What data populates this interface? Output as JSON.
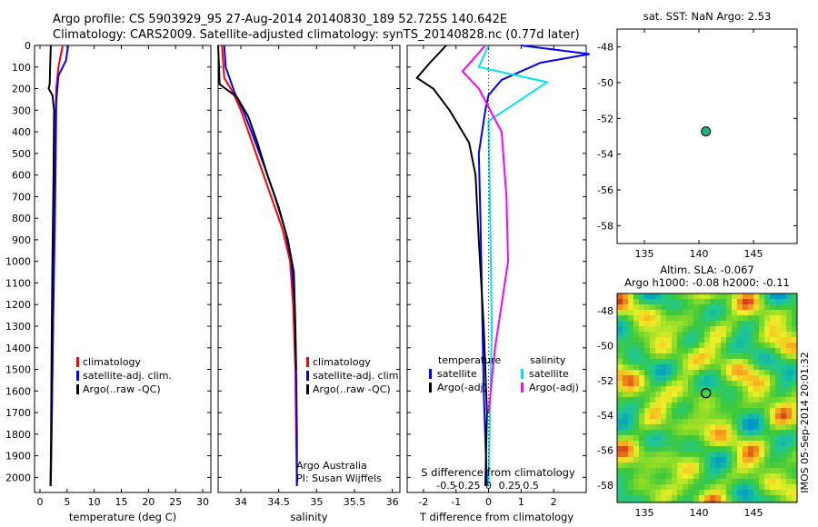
{
  "title_line1": "Argo profile: CS 5903929_95 27-Aug-2014 20140830_189 52.725S 140.642E",
  "title_line2": "Climatology: CARS2009. Satellite-adjusted climatology: synTS_20140828.nc (0.77d later)",
  "colors": {
    "climatology": "#ff0000",
    "satellite": "#0000ff",
    "argo": "#000000",
    "sal_satellite": "#00e5e5",
    "sal_argo": "#ff00ff"
  },
  "depth_ticks": [
    "0",
    "100",
    "200",
    "300",
    "400",
    "500",
    "600",
    "700",
    "800",
    "900",
    "1000",
    "1100",
    "1200",
    "1300",
    "1400",
    "1500",
    "1600",
    "1700",
    "1800",
    "1900",
    "2000"
  ],
  "chart_data": [
    {
      "type": "line",
      "name": "temperature",
      "xlabel": "temperature (deg C)",
      "xlim": [
        -1,
        31.5
      ],
      "ylim": [
        2070,
        0
      ],
      "x_ticks": [
        "0",
        "5",
        "10",
        "15",
        "20",
        "25",
        "30"
      ],
      "legend": [
        "climatology",
        "satellite-adj. clim.",
        "Argo(..raw -QC)"
      ],
      "series": [
        {
          "name": "climatology",
          "color": "#ff0000",
          "x": [
            4.2,
            3.4,
            3.0,
            2.9,
            2.8,
            2.65,
            2.5,
            2.35,
            2.2,
            2.1,
            2.0
          ],
          "y": [
            0,
            100,
            200,
            300,
            500,
            800,
            1100,
            1400,
            1700,
            1900,
            2040
          ]
        },
        {
          "name": "satellite-adj. clim.",
          "color": "#0000ff",
          "x": [
            5.2,
            4.8,
            3.4,
            3.0,
            2.9,
            2.75,
            2.55,
            2.35,
            2.2,
            2.05,
            1.95
          ],
          "y": [
            0,
            70,
            140,
            260,
            500,
            800,
            1100,
            1400,
            1700,
            1900,
            2040
          ]
        },
        {
          "name": "Argo(..raw -QC)",
          "color": "#000000",
          "x": [
            2.0,
            1.9,
            1.8,
            1.6,
            2.3,
            2.6,
            2.5,
            2.3,
            2.15,
            2.05,
            1.95
          ],
          "y": [
            0,
            80,
            180,
            200,
            230,
            300,
            600,
            1000,
            1400,
            1800,
            2040
          ]
        }
      ]
    },
    {
      "type": "line",
      "name": "salinity",
      "xlabel": "salinity",
      "xlim": [
        33.7,
        36.1
      ],
      "ylim": [
        2070,
        0
      ],
      "x_ticks": [
        "34",
        "34.5",
        "35",
        "35.5",
        "36"
      ],
      "legend": [
        "climatology",
        "satellite-adj. clim.",
        "Argo(..raw -QC)"
      ],
      "annotation": [
        "Argo Australia",
        "PI: Susan Wijffels"
      ],
      "series": [
        {
          "name": "climatology",
          "color": "#ff0000",
          "x": [
            33.75,
            33.78,
            33.9,
            34.0,
            34.1,
            34.25,
            34.4,
            34.55,
            34.65,
            34.69,
            34.72,
            34.73,
            34.74
          ],
          "y": [
            0,
            150,
            220,
            300,
            400,
            550,
            700,
            850,
            1000,
            1200,
            1500,
            1800,
            2040
          ]
        },
        {
          "name": "satellite-adj. clim.",
          "color": "#0000ff",
          "x": [
            33.78,
            33.8,
            33.92,
            34.03,
            34.14,
            34.3,
            34.45,
            34.58,
            34.67,
            34.71,
            34.73,
            34.74,
            34.74
          ],
          "y": [
            0,
            100,
            220,
            300,
            400,
            550,
            700,
            850,
            1000,
            1200,
            1500,
            1800,
            2040
          ]
        },
        {
          "name": "Argo(..raw -QC)",
          "color": "#000000",
          "x": [
            33.7,
            33.72,
            33.95,
            34.1,
            34.22,
            34.35,
            34.5,
            34.62,
            34.7,
            34.72,
            34.73
          ],
          "y": [
            0,
            180,
            240,
            330,
            450,
            600,
            750,
            900,
            1050,
            1300,
            1500
          ]
        }
      ]
    },
    {
      "type": "line",
      "name": "difference",
      "xlabel": "T difference from climatology",
      "xlabel_top": "S difference from climatology",
      "xlim": [
        -2.5,
        3.0
      ],
      "ylim": [
        2070,
        0
      ],
      "x_ticks": [
        "-2",
        "-1",
        "0",
        "1",
        "2"
      ],
      "x_ticks_top": [
        "-0.5",
        "-0.25",
        "0",
        "0.25",
        "0.5"
      ],
      "legend_left_title": "temperature",
      "legend_left": [
        "satellite",
        "Argo(-adj)"
      ],
      "legend_right_title": "salinity",
      "legend_right": [
        "satellite",
        "Argo(-adj)"
      ],
      "series": [
        {
          "name": "temperature satellite",
          "color": "#0000ff",
          "x": [
            1.0,
            3.1,
            1.6,
            0.4,
            0.0,
            -0.1,
            -0.3,
            -0.25,
            -0.2,
            -0.15,
            -0.05
          ],
          "y": [
            0,
            40,
            80,
            160,
            230,
            300,
            500,
            800,
            1200,
            1600,
            2040
          ]
        },
        {
          "name": "temperature Argo(-adj)",
          "color": "#000000",
          "x": [
            -1.3,
            -1.8,
            -2.2,
            -1.7,
            -1.2,
            -0.6,
            -0.4,
            -0.3,
            -0.15,
            -0.05,
            -0.1
          ],
          "y": [
            0,
            80,
            150,
            200,
            300,
            450,
            600,
            900,
            1300,
            1700,
            2040
          ]
        },
        {
          "name": "salinity satellite",
          "color": "#00e5e5",
          "x": [
            0.0,
            -0.3,
            1.8,
            0.0,
            0.05,
            0.1,
            0.0
          ],
          "y": [
            0,
            100,
            170,
            350,
            800,
            1300,
            2040
          ]
        },
        {
          "name": "salinity Argo(-adj)",
          "color": "#ff00ff",
          "x": [
            -0.1,
            -0.8,
            -0.3,
            0.4,
            0.55,
            0.6,
            0.2,
            0.0
          ],
          "y": [
            0,
            120,
            200,
            400,
            700,
            1000,
            1400,
            1700
          ]
        }
      ]
    },
    {
      "type": "scatter",
      "name": "sst-map",
      "title": "sat. SST: NaN Argo: 2.53",
      "xlim": [
        132.5,
        149
      ],
      "ylim": [
        -59,
        -47
      ],
      "x_ticks": [
        135,
        140,
        145
      ],
      "y_ticks": [
        -48,
        -50,
        -52,
        -54,
        -56,
        -58
      ],
      "points": [
        {
          "x": 140.642,
          "y": -52.725,
          "color": "#20b080"
        }
      ]
    },
    {
      "type": "heatmap",
      "name": "sla-map",
      "title_line1": "Altim. SLA: -0.067",
      "title_line2": "Argo h1000: -0.08 h2000: -0.11",
      "xlim": [
        132.5,
        149
      ],
      "ylim": [
        -59,
        -47
      ],
      "x_ticks": [
        135,
        140,
        145
      ],
      "y_ticks": [
        -48,
        -50,
        -52,
        -54,
        -56,
        -58
      ],
      "points": [
        {
          "x": 140.642,
          "y": -52.725
        }
      ],
      "side_label": "IMOS 05-Sep-2014 20:01:32"
    }
  ]
}
